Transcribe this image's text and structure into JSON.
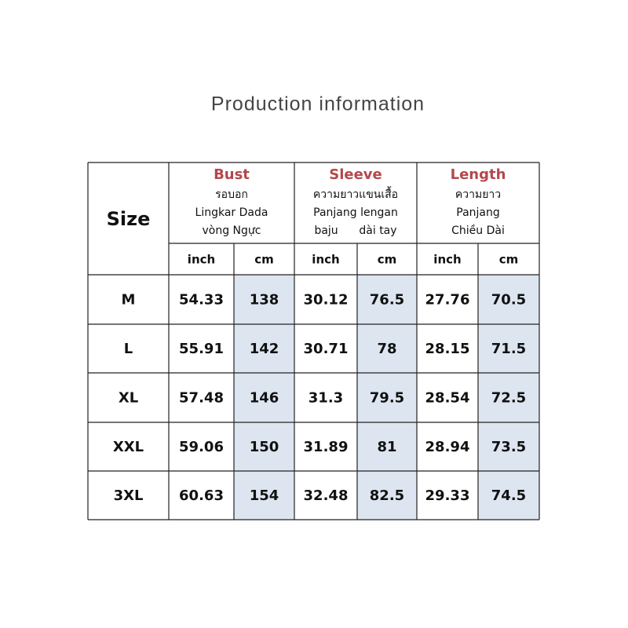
{
  "header": {
    "title": "Production information"
  },
  "table": {
    "size_label": "Size",
    "groups": [
      {
        "title": "Bust",
        "lines": [
          "รอบอก",
          "Lingkar Dada",
          "vòng Ngực"
        ]
      },
      {
        "title": "Sleeve",
        "lines": [
          "ความยาวแขนเสื้อ",
          "Panjang lengan",
          "baju      dài tay"
        ]
      },
      {
        "title": "Length",
        "lines": [
          "ความยาว",
          "Panjang",
          "Chiều Dài"
        ]
      }
    ],
    "units": [
      "inch",
      "cm",
      "inch",
      "cm",
      "inch",
      "cm"
    ],
    "rows": [
      [
        "M",
        "54.33",
        "138",
        "30.12",
        "76.5",
        "27.76",
        "70.5"
      ],
      [
        "L",
        "55.91",
        "142",
        "30.71",
        "78",
        "28.15",
        "71.5"
      ],
      [
        "XL",
        "57.48",
        "146",
        "31.3",
        "79.5",
        "28.54",
        "72.5"
      ],
      [
        "XXL",
        "59.06",
        "150",
        "31.89",
        "81",
        "28.94",
        "73.5"
      ],
      [
        "3XL",
        "60.63",
        "154",
        "32.48",
        "82.5",
        "29.33",
        "74.5"
      ]
    ]
  }
}
